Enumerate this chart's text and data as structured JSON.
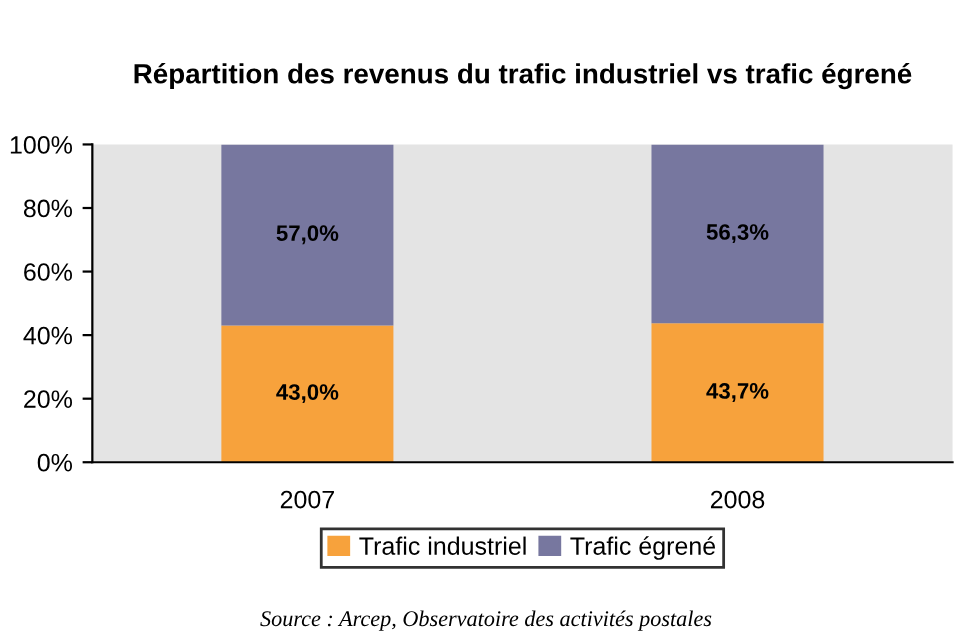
{
  "chart_data": {
    "type": "bar",
    "title": "Répartition des revenus du trafic industriel vs trafic égrené",
    "categories": [
      "2007",
      "2008"
    ],
    "stacked": true,
    "series": [
      {
        "name": "Trafic industriel",
        "color": "#f7a23c",
        "values": [
          43.0,
          43.7
        ],
        "value_labels": [
          "43,0%",
          "43,7%"
        ]
      },
      {
        "name": "Trafic égrené",
        "color": "#77779f",
        "values": [
          57.0,
          56.3
        ],
        "value_labels": [
          "57,0%",
          "56,3%"
        ]
      }
    ],
    "ylim": [
      0,
      100
    ],
    "yticks": [
      {
        "value": 0,
        "label": "0%"
      },
      {
        "value": 20,
        "label": "20%"
      },
      {
        "value": 40,
        "label": "40%"
      },
      {
        "value": 60,
        "label": "60%"
      },
      {
        "value": 80,
        "label": "80%"
      },
      {
        "value": 100,
        "label": "100%"
      }
    ],
    "legend": "bottom",
    "grid": false,
    "annotations": [
      "Source : Arcep, Observatoire des activités postales"
    ]
  }
}
